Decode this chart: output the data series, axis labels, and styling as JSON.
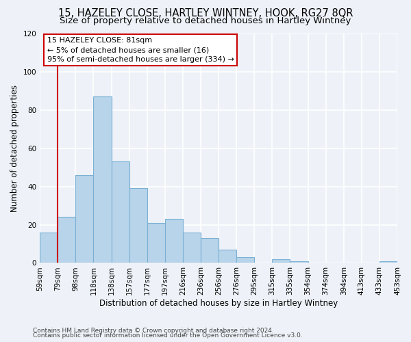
{
  "title": "15, HAZELEY CLOSE, HARTLEY WINTNEY, HOOK, RG27 8QR",
  "subtitle": "Size of property relative to detached houses in Hartley Wintney",
  "xlabel": "Distribution of detached houses by size in Hartley Wintney",
  "ylabel": "Number of detached properties",
  "bar_values": [
    16,
    24,
    46,
    87,
    53,
    39,
    21,
    23,
    16,
    13,
    7,
    3,
    0,
    2,
    1,
    0,
    0,
    0,
    0,
    1
  ],
  "bar_labels": [
    "59sqm",
    "79sqm",
    "98sqm",
    "118sqm",
    "138sqm",
    "157sqm",
    "177sqm",
    "197sqm",
    "216sqm",
    "236sqm",
    "256sqm",
    "276sqm",
    "295sqm",
    "315sqm",
    "335sqm",
    "354sqm",
    "374sqm",
    "394sqm",
    "413sqm",
    "433sqm",
    "453sqm"
  ],
  "bar_color": "#b8d4ea",
  "bar_edge_color": "#7ab0d4",
  "ylim": [
    0,
    120
  ],
  "yticks": [
    0,
    20,
    40,
    60,
    80,
    100,
    120
  ],
  "vline_color": "#cc0000",
  "annotation_line1": "15 HAZELEY CLOSE: 81sqm",
  "annotation_line2": "← 5% of detached houses are smaller (16)",
  "annotation_line3": "95% of semi-detached houses are larger (334) →",
  "footer_line1": "Contains HM Land Registry data © Crown copyright and database right 2024.",
  "footer_line2": "Contains public sector information licensed under the Open Government Licence v3.0.",
  "background_color": "#eef2f8",
  "grid_color": "#ffffff",
  "title_fontsize": 10.5,
  "subtitle_fontsize": 9.5,
  "axis_fontsize": 8.5,
  "tick_fontsize": 7.5
}
